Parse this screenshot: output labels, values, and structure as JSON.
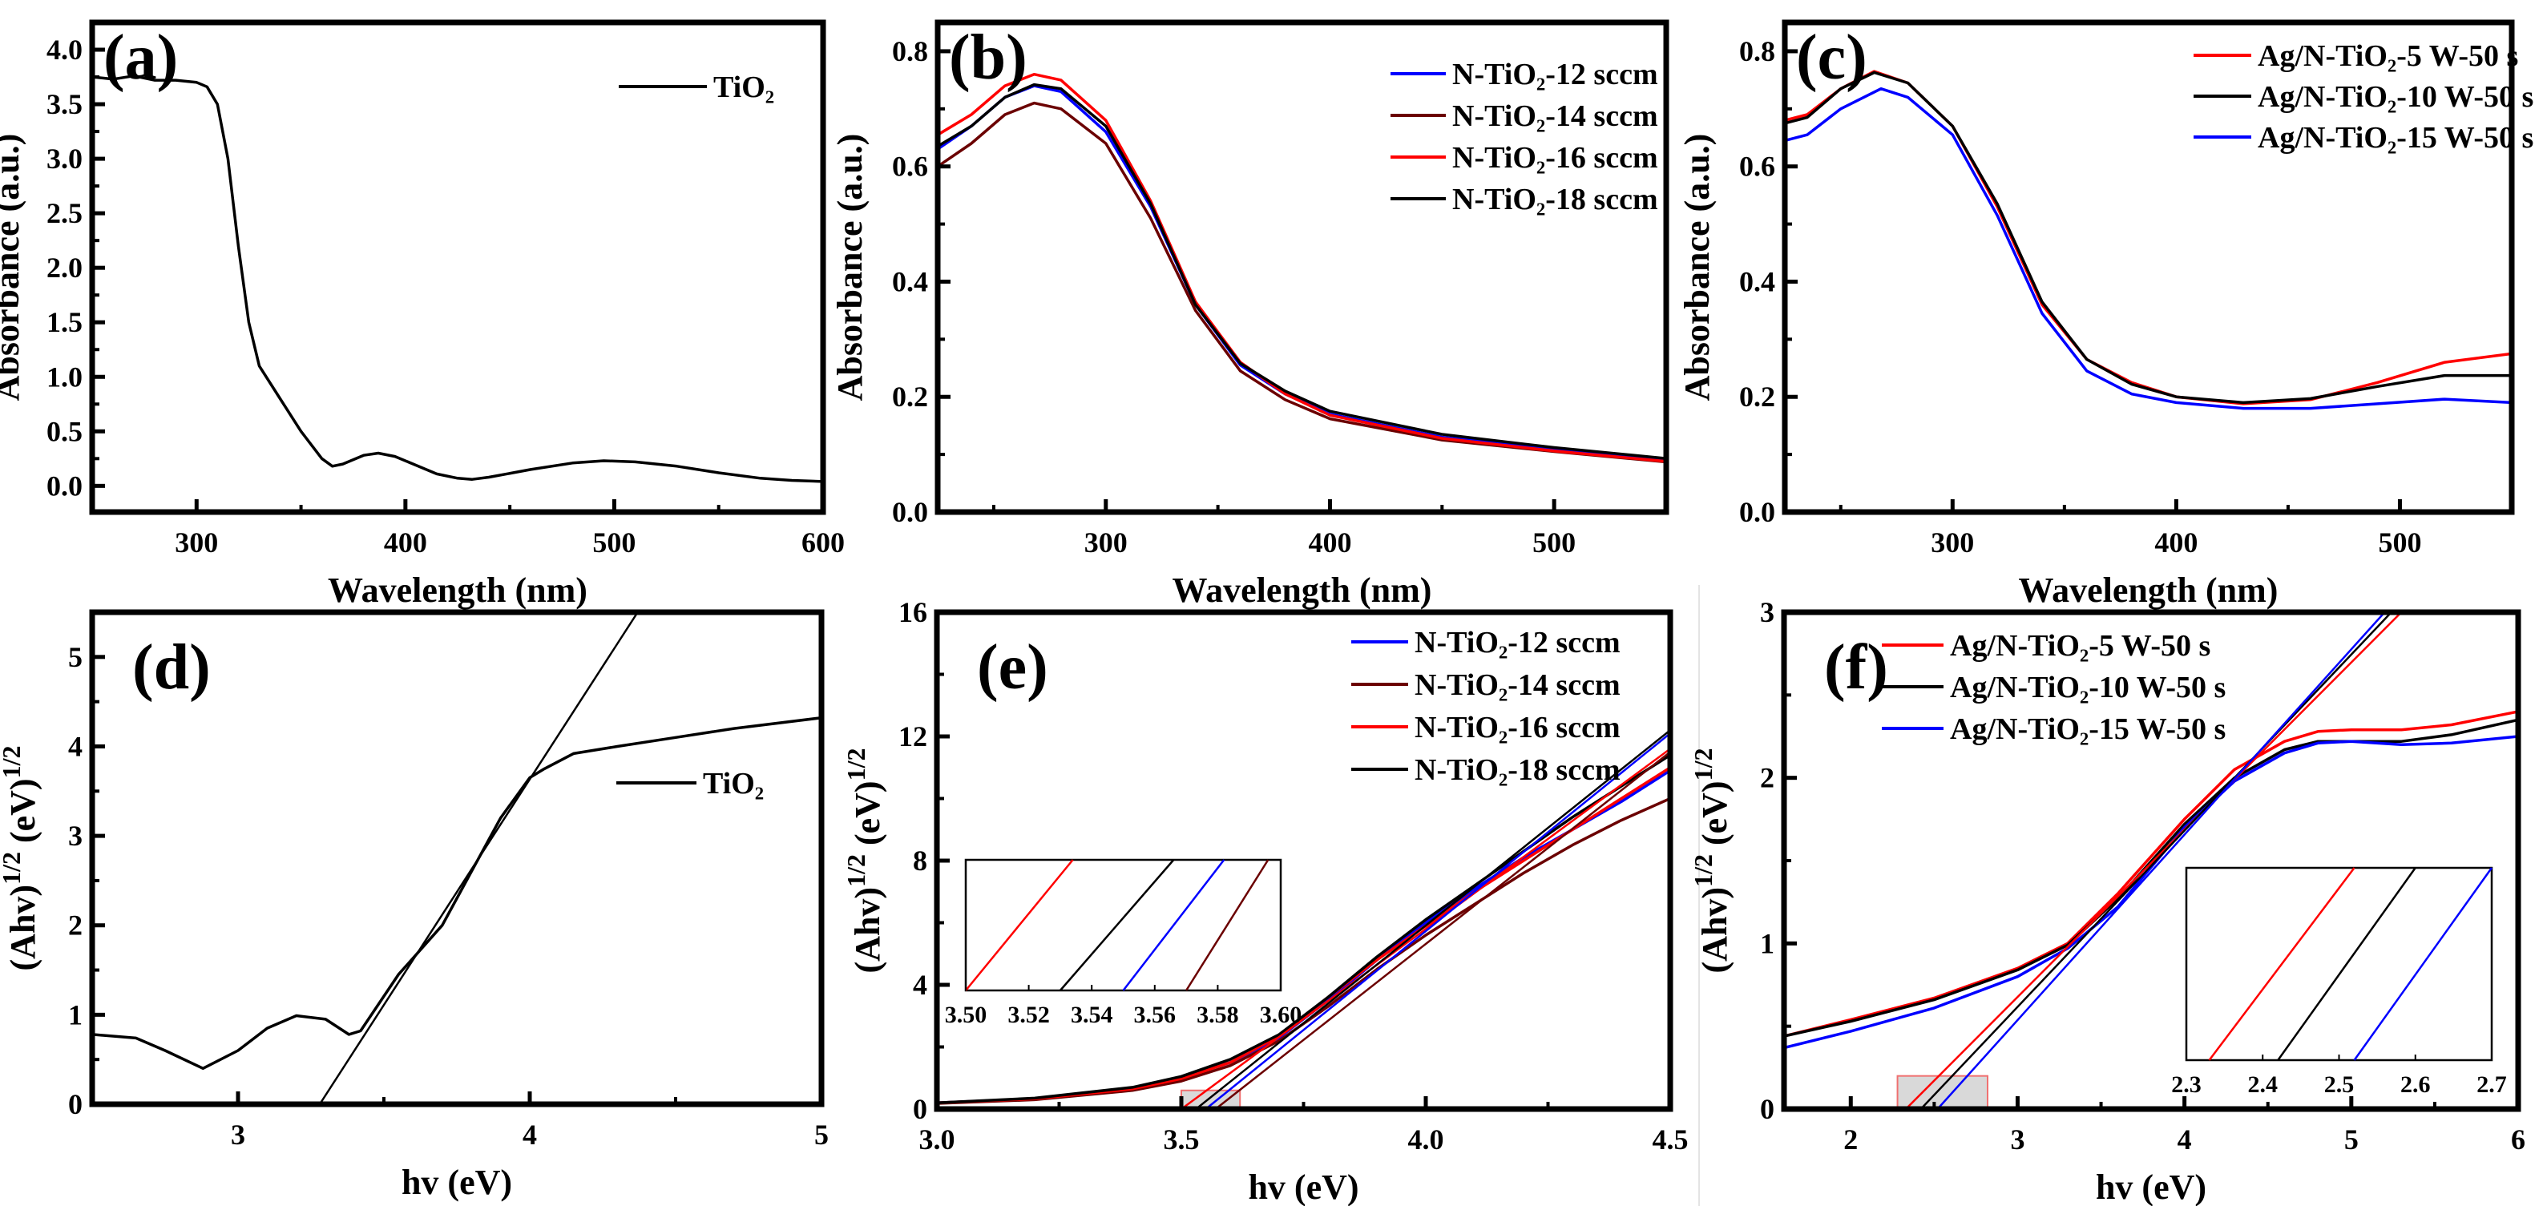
{
  "chart_data": [
    {
      "type": "line",
      "panel_label": "(a)",
      "xlabel": "Wavelength (nm)",
      "ylabel_parts": [
        {
          "t": "Absorbance (a.u.)"
        }
      ],
      "xlim": [
        250,
        600
      ],
      "ylim": [
        -0.24,
        4.25
      ],
      "xticks": [
        300,
        400,
        500,
        600
      ],
      "xtick_labels": [
        "300",
        "400",
        "500",
        "600"
      ],
      "yticks": [
        0,
        0.5,
        1,
        1.5,
        2,
        2.5,
        3,
        3.5,
        4
      ],
      "ytick_labels": [
        "0.0",
        "0.5",
        "1.0",
        "1.5",
        "2.0",
        "2.5",
        "3.0",
        "3.5",
        "4.0"
      ],
      "legend": {
        "position": "top-right"
      },
      "series": [
        {
          "name": "TiO₂",
          "color": "#000000",
          "x": [
            250,
            260,
            270,
            280,
            290,
            300,
            305,
            310,
            315,
            320,
            325,
            330,
            340,
            350,
            360,
            365,
            370,
            380,
            387,
            395,
            405,
            415,
            425,
            432,
            440,
            460,
            480,
            495,
            510,
            530,
            550,
            570,
            585,
            600
          ],
          "y": [
            3.75,
            3.73,
            3.76,
            3.72,
            3.72,
            3.7,
            3.66,
            3.5,
            3.0,
            2.2,
            1.5,
            1.1,
            0.8,
            0.5,
            0.25,
            0.18,
            0.2,
            0.28,
            0.3,
            0.27,
            0.19,
            0.11,
            0.07,
            0.06,
            0.08,
            0.15,
            0.21,
            0.23,
            0.22,
            0.18,
            0.12,
            0.07,
            0.05,
            0.04
          ]
        }
      ]
    },
    {
      "type": "line",
      "panel_label": "(b)",
      "xlabel": "Wavelength (nm)",
      "ylabel_parts": [
        {
          "t": "Absorbance (a.u.)"
        }
      ],
      "xlim": [
        225,
        550
      ],
      "ylim": [
        0,
        0.85
      ],
      "xticks": [
        300,
        400,
        500
      ],
      "xtick_labels": [
        "300",
        "400",
        "500"
      ],
      "yticks": [
        0,
        0.2,
        0.4,
        0.6,
        0.8
      ],
      "ytick_labels": [
        "0.0",
        "0.2",
        "0.4",
        "0.6",
        "0.8"
      ],
      "legend": {
        "position": "top-right"
      },
      "series": [
        {
          "name": "N-TiO₂-12 sccm",
          "color": "#0000ff",
          "x": [
            225,
            240,
            255,
            268,
            280,
            300,
            320,
            340,
            360,
            380,
            400,
            450,
            500,
            550
          ],
          "y": [
            0.63,
            0.67,
            0.72,
            0.74,
            0.73,
            0.66,
            0.53,
            0.36,
            0.255,
            0.205,
            0.17,
            0.13,
            0.11,
            0.09
          ]
        },
        {
          "name": "N-TiO₂-14 sccm",
          "color": "#6b0000",
          "x": [
            225,
            240,
            255,
            268,
            280,
            300,
            320,
            340,
            360,
            380,
            400,
            450,
            500,
            550
          ],
          "y": [
            0.6,
            0.64,
            0.69,
            0.71,
            0.7,
            0.64,
            0.51,
            0.35,
            0.245,
            0.195,
            0.162,
            0.125,
            0.105,
            0.087
          ]
        },
        {
          "name": "N-TiO₂-16 sccm",
          "color": "#ff0000",
          "x": [
            225,
            240,
            255,
            268,
            280,
            300,
            320,
            340,
            360,
            380,
            400,
            450,
            500,
            550
          ],
          "y": [
            0.655,
            0.69,
            0.74,
            0.76,
            0.75,
            0.68,
            0.54,
            0.365,
            0.26,
            0.205,
            0.168,
            0.128,
            0.106,
            0.088
          ]
        },
        {
          "name": "N-TiO₂-18 sccm",
          "color": "#000000",
          "x": [
            225,
            240,
            255,
            268,
            280,
            300,
            320,
            340,
            360,
            380,
            400,
            450,
            500,
            550
          ],
          "y": [
            0.635,
            0.67,
            0.72,
            0.742,
            0.735,
            0.67,
            0.535,
            0.36,
            0.258,
            0.21,
            0.175,
            0.135,
            0.112,
            0.093
          ]
        }
      ]
    },
    {
      "type": "line",
      "panel_label": "(c)",
      "xlabel": "Wavelength (nm)",
      "ylabel_parts": [
        {
          "t": "Absorbance (a.u.)"
        }
      ],
      "xlim": [
        225,
        550
      ],
      "ylim": [
        0,
        0.85
      ],
      "xticks": [
        300,
        400,
        500
      ],
      "xtick_labels": [
        "300",
        "400",
        "500"
      ],
      "yticks": [
        0,
        0.2,
        0.4,
        0.6,
        0.8
      ],
      "ytick_labels": [
        "0.0",
        "0.2",
        "0.4",
        "0.6",
        "0.8"
      ],
      "legend": {
        "position": "top-right"
      },
      "series": [
        {
          "name": "Ag/N-TiO₂-5 W-50 s",
          "color": "#ff0000",
          "x": [
            225,
            235,
            250,
            265,
            280,
            300,
            320,
            340,
            360,
            380,
            400,
            430,
            460,
            490,
            520,
            550
          ],
          "y": [
            0.68,
            0.69,
            0.735,
            0.765,
            0.745,
            0.67,
            0.53,
            0.36,
            0.265,
            0.225,
            0.2,
            0.188,
            0.195,
            0.225,
            0.26,
            0.275
          ]
        },
        {
          "name": "Ag/N-TiO₂-10 W-50 s",
          "color": "#000000",
          "x": [
            225,
            235,
            250,
            265,
            280,
            300,
            320,
            340,
            360,
            380,
            400,
            430,
            460,
            490,
            520,
            550
          ],
          "y": [
            0.675,
            0.685,
            0.735,
            0.763,
            0.745,
            0.67,
            0.535,
            0.365,
            0.265,
            0.222,
            0.2,
            0.19,
            0.197,
            0.218,
            0.237,
            0.237
          ]
        },
        {
          "name": "Ag/N-TiO₂-15 W-50 s",
          "color": "#0000ff",
          "x": [
            225,
            235,
            250,
            268,
            280,
            300,
            320,
            340,
            360,
            380,
            400,
            430,
            460,
            490,
            520,
            550
          ],
          "y": [
            0.645,
            0.655,
            0.7,
            0.735,
            0.72,
            0.655,
            0.515,
            0.345,
            0.245,
            0.205,
            0.19,
            0.18,
            0.18,
            0.188,
            0.196,
            0.19
          ]
        }
      ]
    },
    {
      "type": "line",
      "panel_label": "(d)",
      "xlabel": "hv (eV)",
      "ylabel_parts": [
        {
          "t": "(Ahv)"
        },
        {
          "t": "1/2",
          "sup": true
        },
        {
          "t": " (eV)"
        },
        {
          "t": "1/2",
          "sup": true
        }
      ],
      "xlim": [
        2.5,
        5
      ],
      "ylim": [
        0,
        5.5
      ],
      "xticks": [
        3,
        4,
        5
      ],
      "xtick_labels": [
        "3",
        "4",
        "5"
      ],
      "yticks": [
        0,
        1,
        2,
        3,
        4,
        5
      ],
      "ytick_labels": [
        "0",
        "1",
        "2",
        "3",
        "4",
        "5"
      ],
      "legend": {
        "position": "right"
      },
      "series": [
        {
          "name": "TiO₂",
          "color": "#000000",
          "x": [
            2.5,
            2.65,
            2.75,
            2.88,
            3.0,
            3.1,
            3.2,
            3.3,
            3.38,
            3.42,
            3.55,
            3.7,
            3.8,
            3.9,
            4.0,
            4.05,
            4.15,
            4.3,
            4.5,
            4.7,
            5.0
          ],
          "y": [
            0.78,
            0.74,
            0.6,
            0.4,
            0.6,
            0.85,
            0.99,
            0.95,
            0.78,
            0.82,
            1.45,
            2.0,
            2.6,
            3.2,
            3.65,
            3.75,
            3.92,
            4.0,
            4.1,
            4.2,
            4.32
          ]
        }
      ],
      "fits": [
        {
          "color": "#000000",
          "x": [
            3.28,
            4.37
          ],
          "y": [
            0,
            5.5
          ]
        }
      ]
    },
    {
      "type": "line",
      "panel_label": "(e)",
      "xlabel": "hv (eV)",
      "ylabel_parts": [
        {
          "t": "(Ahv)"
        },
        {
          "t": "1/2",
          "sup": true
        },
        {
          "t": " (eV)"
        },
        {
          "t": "1/2",
          "sup": true
        }
      ],
      "xlim": [
        3.0,
        4.5
      ],
      "ylim": [
        0,
        16
      ],
      "xticks": [
        3.0,
        3.5,
        4.0,
        4.5
      ],
      "xtick_labels": [
        "3.0",
        "3.5",
        "4.0",
        "4.5"
      ],
      "yticks": [
        0,
        4,
        8,
        12,
        16
      ],
      "ytick_labels": [
        "0",
        "4",
        "8",
        "12",
        "16"
      ],
      "legend": {
        "position": "top-right"
      },
      "series": [
        {
          "name": "N-TiO₂-12 sccm",
          "color": "#0000ff",
          "x": [
            3.0,
            3.2,
            3.4,
            3.5,
            3.6,
            3.7,
            3.8,
            3.9,
            4.0,
            4.1,
            4.2,
            4.3,
            4.4,
            4.5
          ],
          "y": [
            0.2,
            0.33,
            0.65,
            1.0,
            1.5,
            2.3,
            3.5,
            4.8,
            6.0,
            7.1,
            8.1,
            9.0,
            9.9,
            10.9
          ]
        },
        {
          "name": "N-TiO₂-14 sccm",
          "color": "#6b0000",
          "x": [
            3.0,
            3.2,
            3.4,
            3.5,
            3.6,
            3.7,
            3.8,
            3.9,
            4.0,
            4.1,
            4.2,
            4.3,
            4.4,
            4.5
          ],
          "y": [
            0.18,
            0.3,
            0.6,
            0.9,
            1.4,
            2.2,
            3.3,
            4.5,
            5.6,
            6.6,
            7.6,
            8.5,
            9.3,
            10.0
          ]
        },
        {
          "name": "N-TiO₂-16 sccm",
          "color": "#ff0000",
          "x": [
            3.0,
            3.2,
            3.4,
            3.5,
            3.6,
            3.7,
            3.8,
            3.9,
            4.0,
            4.1,
            4.2,
            4.3,
            4.4,
            4.5
          ],
          "y": [
            0.2,
            0.33,
            0.65,
            0.98,
            1.5,
            2.35,
            3.6,
            4.8,
            5.9,
            7.0,
            8.0,
            9.0,
            10.0,
            11.0
          ]
        },
        {
          "name": "N-TiO₂-18 sccm",
          "color": "#000000",
          "x": [
            3.0,
            3.2,
            3.4,
            3.5,
            3.6,
            3.7,
            3.8,
            3.9,
            4.0,
            4.1,
            4.2,
            4.3,
            4.4,
            4.5
          ],
          "y": [
            0.2,
            0.35,
            0.7,
            1.05,
            1.6,
            2.4,
            3.6,
            4.9,
            6.1,
            7.2,
            8.3,
            9.4,
            10.4,
            11.4
          ]
        }
      ],
      "fits": [
        {
          "color": "#ff0000",
          "x": [
            3.5,
            4.5
          ],
          "y": [
            0,
            11.6
          ]
        },
        {
          "color": "#000000",
          "x": [
            3.53,
            4.5
          ],
          "y": [
            0,
            12.2
          ]
        },
        {
          "color": "#0000ff",
          "x": [
            3.55,
            4.5
          ],
          "y": [
            0,
            12.1
          ]
        },
        {
          "color": "#6b0000",
          "x": [
            3.57,
            4.5
          ],
          "y": [
            0,
            11.5
          ]
        }
      ],
      "highlight": {
        "x": [
          3.5,
          3.62
        ],
        "y": [
          0,
          0.6
        ]
      },
      "inset": {
        "xlim": [
          3.5,
          3.6
        ],
        "xticks": [
          3.5,
          3.52,
          3.54,
          3.56,
          3.58,
          3.6
        ],
        "xtick_labels": [
          "3.50",
          "3.52",
          "3.54",
          "3.56",
          "3.58",
          "3.60"
        ],
        "lines": [
          {
            "color": "#ff0000",
            "x0": 3.5,
            "x1": 3.534
          },
          {
            "color": "#000000",
            "x0": 3.53,
            "x1": 3.566
          },
          {
            "color": "#0000ff",
            "x0": 3.55,
            "x1": 3.582
          },
          {
            "color": "#6b0000",
            "x0": 3.57,
            "x1": 3.596
          }
        ]
      }
    },
    {
      "type": "line",
      "panel_label": "(f)",
      "xlabel": "hv (eV)",
      "ylabel_parts": [
        {
          "t": "(Ahv)"
        },
        {
          "t": "1/2",
          "sup": true
        },
        {
          "t": " (eV)"
        },
        {
          "t": "1/2",
          "sup": true
        }
      ],
      "xlim": [
        1.6,
        6
      ],
      "ylim": [
        0,
        3
      ],
      "xticks": [
        2,
        3,
        4,
        5,
        6
      ],
      "xtick_labels": [
        "2",
        "3",
        "4",
        "5",
        "6"
      ],
      "yticks": [
        0,
        1,
        2,
        3
      ],
      "ytick_labels": [
        "0",
        "1",
        "2",
        "3"
      ],
      "legend": {
        "position": "top-left"
      },
      "series": [
        {
          "name": "Ag/N-TiO₂-5 W-50 s",
          "color": "#ff0000",
          "x": [
            1.6,
            2,
            2.5,
            3,
            3.3,
            3.6,
            4,
            4.3,
            4.6,
            4.8,
            5,
            5.3,
            5.6,
            6
          ],
          "y": [
            0.44,
            0.54,
            0.67,
            0.85,
            1.0,
            1.3,
            1.75,
            2.05,
            2.22,
            2.28,
            2.29,
            2.29,
            2.32,
            2.4
          ]
        },
        {
          "name": "Ag/N-TiO₂-10 W-50 s",
          "color": "#000000",
          "x": [
            1.6,
            2,
            2.5,
            3,
            3.3,
            3.6,
            4,
            4.3,
            4.6,
            4.8,
            5,
            5.3,
            5.6,
            6
          ],
          "y": [
            0.44,
            0.53,
            0.66,
            0.84,
            0.99,
            1.27,
            1.72,
            2.0,
            2.17,
            2.22,
            2.22,
            2.22,
            2.26,
            2.35
          ]
        },
        {
          "name": "Ag/N-TiO₂-15 W-50 s",
          "color": "#0000ff",
          "x": [
            1.6,
            2,
            2.5,
            3,
            3.3,
            3.6,
            4,
            4.3,
            4.6,
            4.8,
            5,
            5.3,
            5.6,
            6
          ],
          "y": [
            0.37,
            0.47,
            0.61,
            0.8,
            0.97,
            1.22,
            1.7,
            1.98,
            2.15,
            2.21,
            2.22,
            2.2,
            2.21,
            2.25
          ]
        }
      ],
      "fits": [
        {
          "color": "#ff0000",
          "x": [
            2.33,
            5.3
          ],
          "y": [
            0,
            3
          ]
        },
        {
          "color": "#000000",
          "x": [
            2.42,
            5.24
          ],
          "y": [
            0,
            3
          ]
        },
        {
          "color": "#0000ff",
          "x": [
            2.52,
            5.2
          ],
          "y": [
            0,
            3
          ]
        }
      ],
      "highlight": {
        "x": [
          2.28,
          2.82
        ],
        "y": [
          0,
          0.2
        ]
      },
      "inset": {
        "xlim": [
          2.3,
          2.7
        ],
        "xticks": [
          2.3,
          2.4,
          2.5,
          2.6,
          2.7
        ],
        "xtick_labels": [
          "2.3",
          "2.4",
          "2.5",
          "2.6",
          "2.7"
        ],
        "lines": [
          {
            "color": "#ff0000",
            "x0": 2.33,
            "x1": 2.52
          },
          {
            "color": "#000000",
            "x0": 2.42,
            "x1": 2.6
          },
          {
            "color": "#0000ff",
            "x0": 2.52,
            "x1": 2.7
          }
        ]
      }
    }
  ]
}
